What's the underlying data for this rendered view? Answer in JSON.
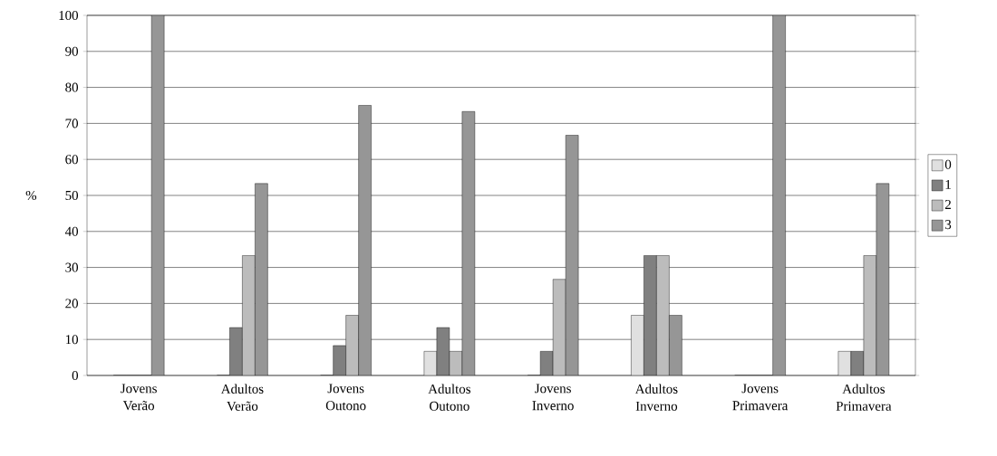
{
  "chart_data": {
    "type": "bar",
    "ylabel": "%",
    "categories": [
      "Jovens Verão",
      "Adultos Verão",
      "Jovens Outono",
      "Adultos Outono",
      "Jovens Inverno",
      "Adultos Inverno",
      "Jovens Primavera",
      "Adultos Primavera"
    ],
    "series": [
      {
        "name": "0",
        "color": "#e0e0e0",
        "values": [
          0,
          0,
          0,
          6.7,
          0,
          16.7,
          0,
          6.7
        ]
      },
      {
        "name": "1",
        "color": "#808080",
        "values": [
          0,
          13.3,
          8.3,
          13.3,
          6.7,
          33.3,
          0,
          6.7
        ]
      },
      {
        "name": "2",
        "color": "#bcbcbc",
        "values": [
          0,
          33.3,
          16.7,
          6.7,
          26.7,
          33.3,
          0,
          33.3
        ]
      },
      {
        "name": "3",
        "color": "#969696",
        "values": [
          100,
          53.3,
          75,
          73.3,
          66.7,
          16.7,
          100,
          53.3
        ]
      }
    ],
    "ylim": [
      0,
      100
    ],
    "yticks": [
      0,
      10,
      20,
      30,
      40,
      50,
      60,
      70,
      80,
      90,
      100
    ],
    "grid": "y",
    "legend": "right"
  }
}
